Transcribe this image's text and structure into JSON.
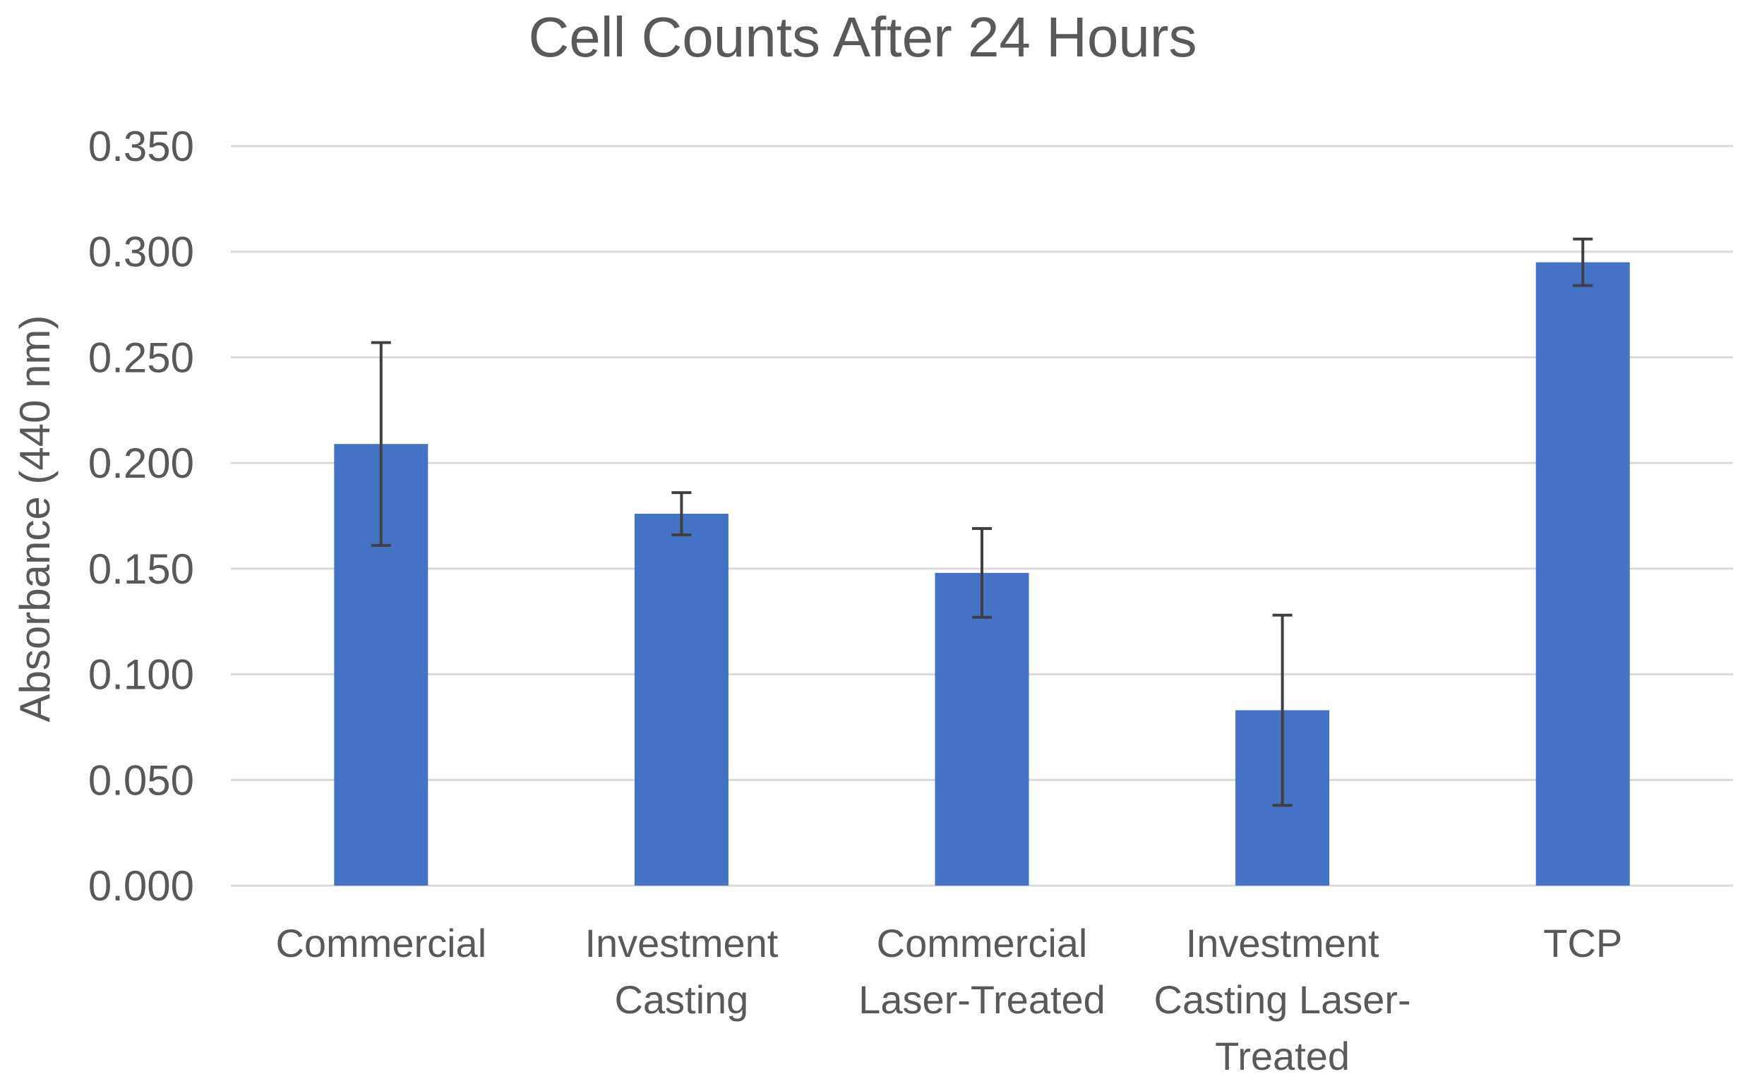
{
  "colors": {
    "bar": "#4472C4",
    "grid": "#D9D9D9",
    "text": "#595959",
    "title": "#595959",
    "error_bar": "#404040"
  },
  "chart_data": {
    "type": "bar",
    "title": "Cell Counts After 24 Hours",
    "xlabel": "",
    "ylabel": "Absorbance (440 nm)",
    "ylim": [
      0,
      0.35
    ],
    "yticks": [
      "0.000",
      "0.050",
      "0.100",
      "0.150",
      "0.200",
      "0.250",
      "0.300",
      "0.350"
    ],
    "ytick_values": [
      0,
      0.05,
      0.1,
      0.15,
      0.2,
      0.25,
      0.3,
      0.35
    ],
    "categories": [
      [
        "Commercial"
      ],
      [
        "Investment",
        "Casting"
      ],
      [
        "Commercial",
        "Laser-Treated"
      ],
      [
        "Investment",
        "Casting Laser-",
        "Treated"
      ],
      [
        "TCP"
      ]
    ],
    "series": [
      {
        "name": "Absorbance",
        "values": [
          0.209,
          0.176,
          0.148,
          0.083,
          0.295
        ],
        "errors": [
          0.048,
          0.01,
          0.021,
          0.045,
          0.011
        ]
      }
    ],
    "grid": true,
    "legend": "none"
  }
}
